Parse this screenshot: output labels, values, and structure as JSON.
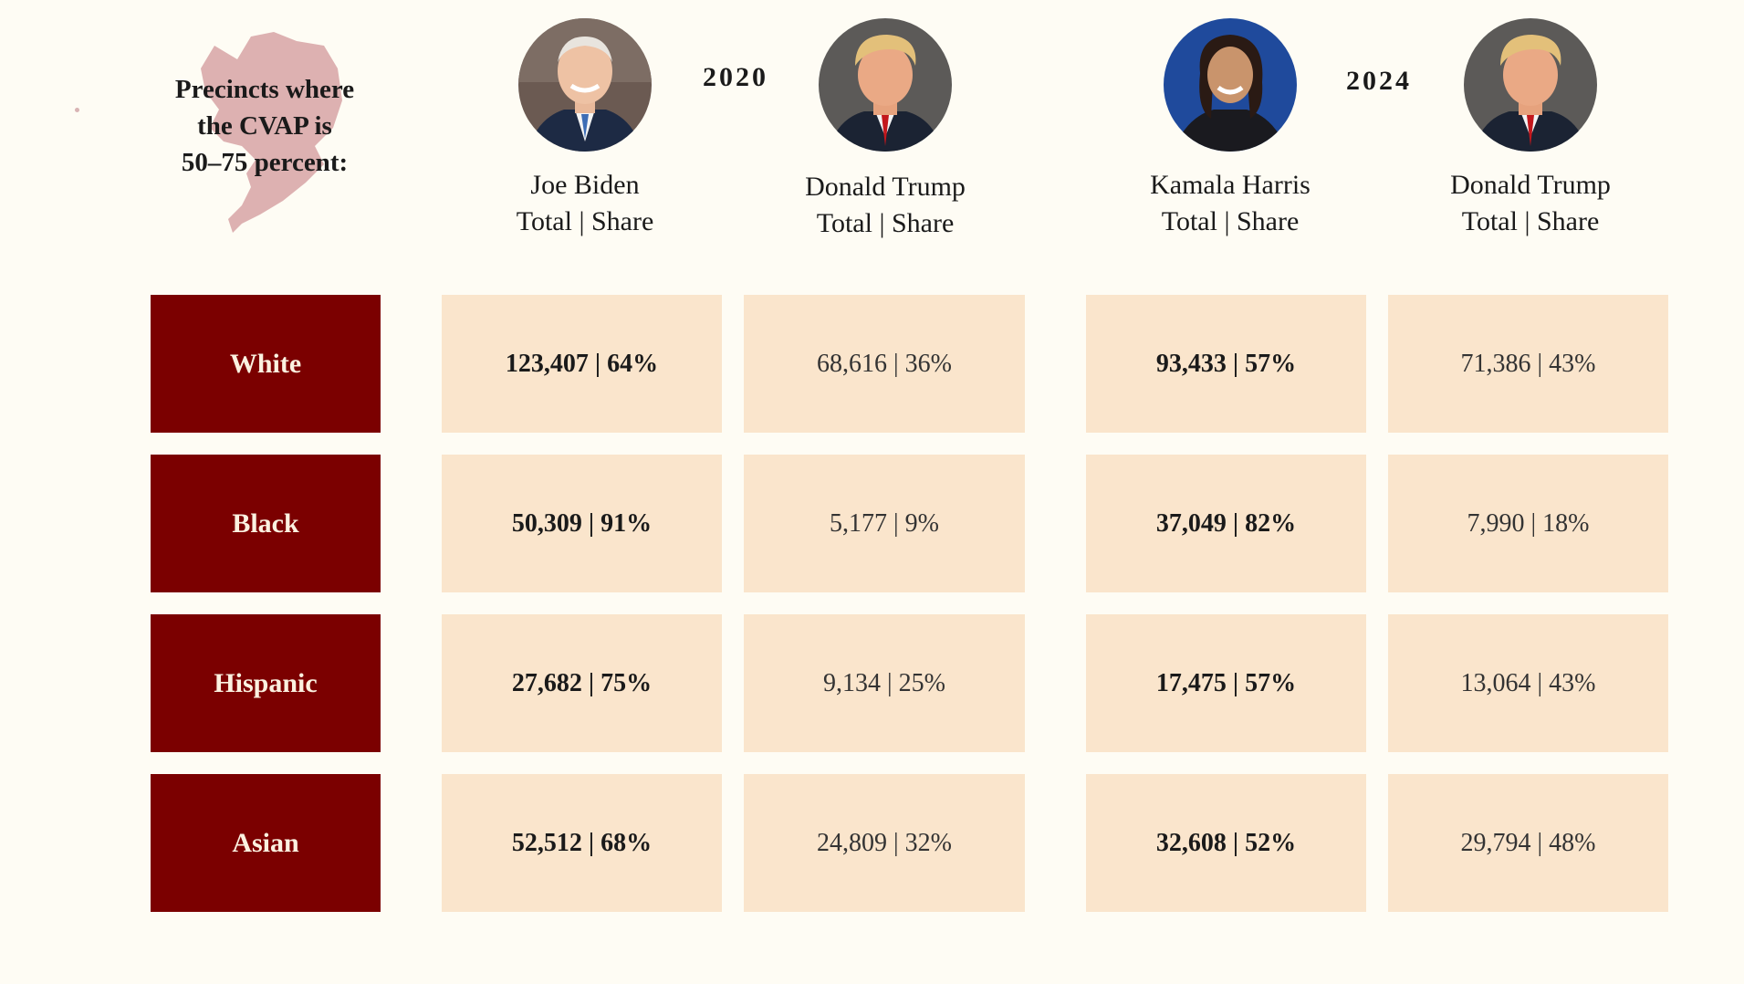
{
  "heading": {
    "line1": "Precincts where",
    "line2": "the CVAP is",
    "line3": "50–75 percent:"
  },
  "icons": {
    "map": "county-map-icon",
    "biden": "joe-biden-portrait",
    "trump_2020": "donald-trump-portrait",
    "harris": "kamala-harris-portrait",
    "trump_2024": "donald-trump-portrait"
  },
  "colors": {
    "background": "#fefcf4",
    "row_label": "#7b0000",
    "cell": "#fae5cc",
    "map": "#d9a9aa"
  },
  "years": [
    "2020",
    "2024"
  ],
  "candidates": [
    {
      "name": "Joe Biden",
      "sub": "Total | Share",
      "year": "2020",
      "party": "dem"
    },
    {
      "name": "Donald Trump",
      "sub": "Total | Share",
      "year": "2020",
      "party": "rep"
    },
    {
      "name": "Kamala Harris",
      "sub": "Total | Share",
      "year": "2024",
      "party": "dem"
    },
    {
      "name": "Donald Trump",
      "sub": "Total | Share",
      "year": "2024",
      "party": "rep"
    }
  ],
  "chart_data": {
    "type": "table",
    "title": "Precincts where the CVAP is 50–75 percent:",
    "columns": [
      "Joe Biden Total | Share",
      "Donald Trump Total | Share",
      "Kamala Harris Total | Share",
      "Donald Trump Total | Share"
    ],
    "rows": [
      {
        "label": "White",
        "cells": [
          "123,407 | 64%",
          "68,616 | 36%",
          "93,433 | 57%",
          "71,386 | 43%"
        ]
      },
      {
        "label": "Black",
        "cells": [
          "50,309 | 91%",
          "5,177 | 9%",
          "37,049 | 82%",
          "7,990 | 18%"
        ]
      },
      {
        "label": "Hispanic",
        "cells": [
          "27,682 | 75%",
          "9,134 | 25%",
          "17,475 | 57%",
          "13,064 | 43%"
        ]
      },
      {
        "label": "Asian",
        "cells": [
          "52,512 | 68%",
          "24,809 | 32%",
          "32,608 | 52%",
          "29,794 | 48%"
        ]
      }
    ]
  }
}
